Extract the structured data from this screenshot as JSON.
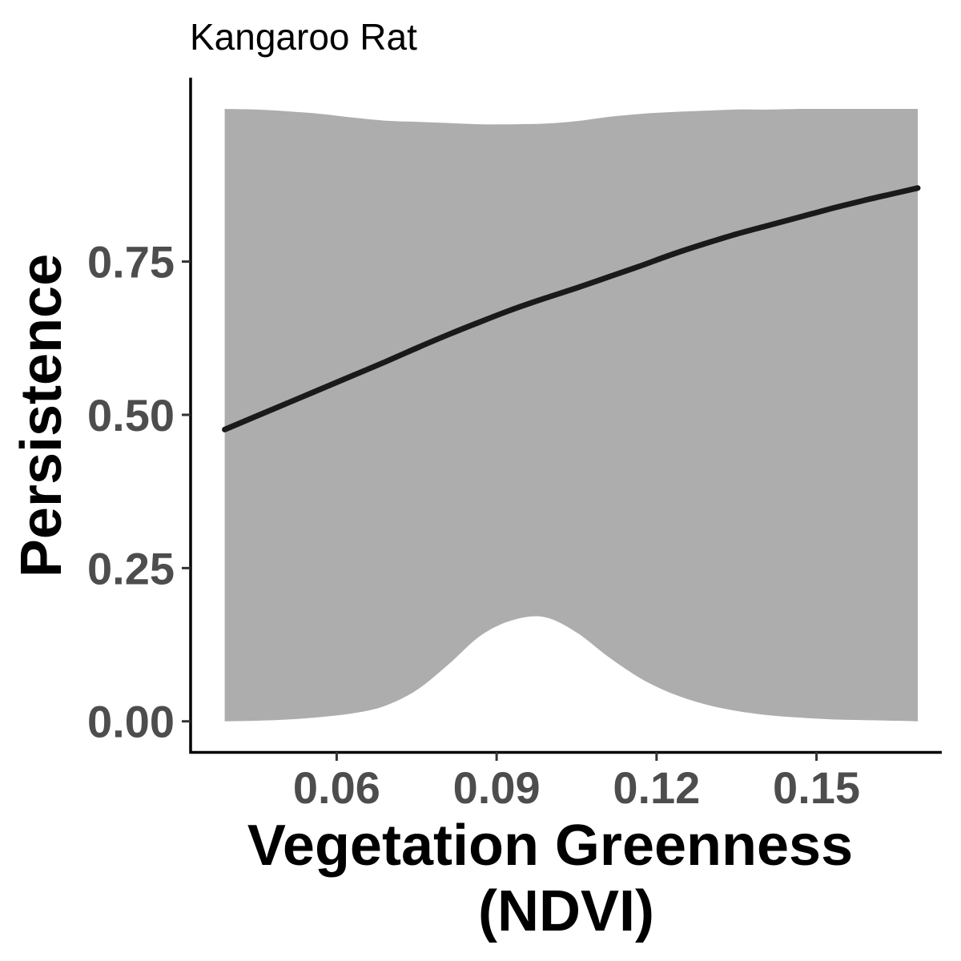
{
  "chart_data": {
    "type": "line",
    "title": "Kangaroo Rat",
    "xlabel_lines": [
      "Vegetation Greenness",
      "(NDVI)"
    ],
    "ylabel": "Persistence",
    "xlim": [
      0.0326,
      0.1735
    ],
    "ylim": [
      -0.05,
      1.05
    ],
    "x_ticks": [
      0.06,
      0.09,
      0.12,
      0.15
    ],
    "x_tick_labels": [
      "0.06",
      "0.09",
      "0.12",
      "0.15"
    ],
    "y_ticks": [
      0,
      0.25,
      0.5,
      0.75
    ],
    "y_tick_labels": [
      "0.00",
      "0.25",
      "0.50",
      "0.75"
    ],
    "grid": false,
    "legend": "none",
    "series": [
      {
        "x": [
          0.039,
          0.045,
          0.051,
          0.057,
          0.063,
          0.069,
          0.075,
          0.081,
          0.087,
          0.093,
          0.099,
          0.105,
          0.111,
          0.117,
          0.123,
          0.129,
          0.135,
          0.141,
          0.147,
          0.153,
          0.159,
          0.165,
          0.169
        ],
        "y": [
          0.476,
          0.498,
          0.52,
          0.542,
          0.564,
          0.586,
          0.609,
          0.631,
          0.652,
          0.672,
          0.69,
          0.707,
          0.725,
          0.743,
          0.762,
          0.779,
          0.795,
          0.809,
          0.823,
          0.837,
          0.85,
          0.862,
          0.87
        ],
        "ci_lower": [
          0.0,
          0.001,
          0.003,
          0.007,
          0.013,
          0.025,
          0.051,
          0.093,
          0.14,
          0.165,
          0.17,
          0.145,
          0.105,
          0.07,
          0.045,
          0.028,
          0.017,
          0.01,
          0.006,
          0.003,
          0.002,
          0.001,
          0.0
        ],
        "ci_upper": [
          0.999,
          0.998,
          0.995,
          0.991,
          0.985,
          0.98,
          0.978,
          0.976,
          0.974,
          0.974,
          0.975,
          0.979,
          0.986,
          0.991,
          0.994,
          0.996,
          0.998,
          0.998,
          0.999,
          0.999,
          0.999,
          0.999,
          0.999
        ]
      }
    ],
    "colors": {
      "line": "#1a1a1a",
      "ribbon": "#adadad"
    }
  }
}
